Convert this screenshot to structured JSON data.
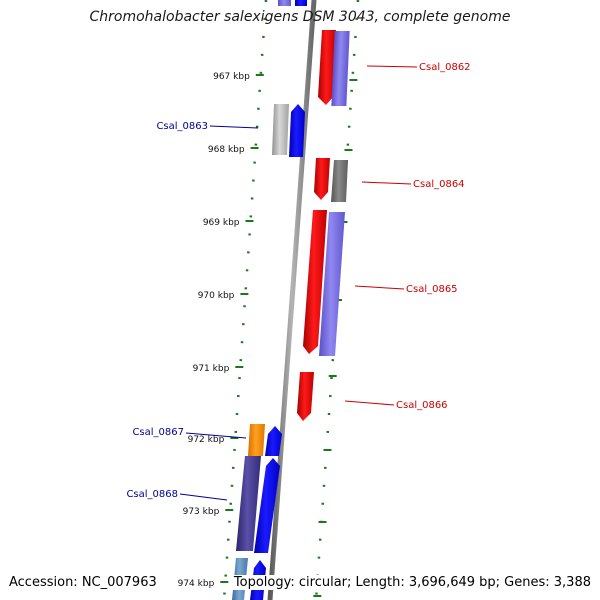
{
  "title": "Chromohalobacter salexigens DSM 3043, complete genome",
  "footer": {
    "accession": "Accession: NC_007963",
    "topology": "Topology: circular; Length: 3,696,649 bp; Genes: 3,388"
  },
  "colors": {
    "forward_label": "#cc0000",
    "reverse_label": "#000099",
    "tick": "#1a7a1a",
    "backbone": "#8c8c8c"
  },
  "ticks": [
    {
      "label": "967 kbp"
    },
    {
      "label": "968 kbp"
    },
    {
      "label": "969 kbp"
    },
    {
      "label": "970 kbp"
    },
    {
      "label": "971 kbp"
    },
    {
      "label": "972 kbp"
    },
    {
      "label": "973 kbp"
    },
    {
      "label": "974 kbp"
    }
  ],
  "gene_labels": [
    {
      "text": "Csal_0862",
      "strand": "forward"
    },
    {
      "text": "Csal_0863",
      "strand": "reverse"
    },
    {
      "text": "Csal_0864",
      "strand": "forward"
    },
    {
      "text": "Csal_0865",
      "strand": "forward"
    },
    {
      "text": "Csal_0866",
      "strand": "forward"
    },
    {
      "text": "Csal_0867",
      "strand": "reverse"
    },
    {
      "text": "Csal_0868",
      "strand": "reverse"
    }
  ]
}
